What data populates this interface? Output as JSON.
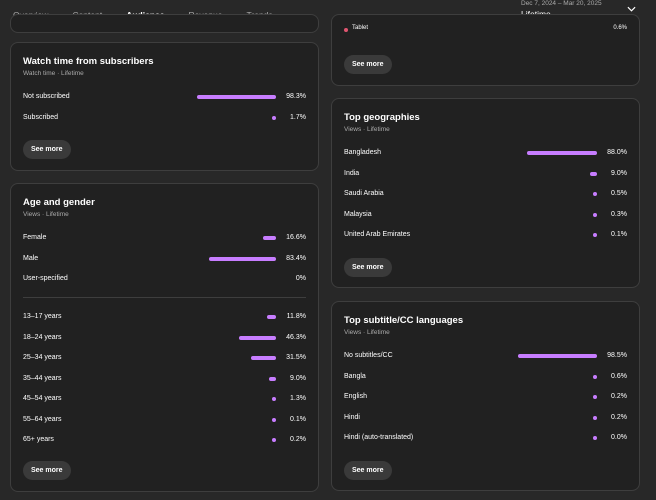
{
  "tabs": [
    "Overview",
    "Content",
    "Audience",
    "Revenue",
    "Trends"
  ],
  "active_tab": "Audience",
  "date_range": {
    "range": "Dec 7, 2024 – Mar 20, 2025",
    "period": "Lifetime"
  },
  "accent_color": "#c77dff",
  "top_partial_card": {
    "label": "Tablet",
    "value": "0.6%",
    "see_more": "See more"
  },
  "watch_time": {
    "title": "Watch time from subscribers",
    "subtitle": "Watch time · Lifetime",
    "rows": [
      {
        "label": "Not subscribed",
        "value": "98.3%",
        "pct": 98.3
      },
      {
        "label": "Subscribed",
        "value": "1.7%",
        "pct": 1.7
      }
    ],
    "see_more": "See more"
  },
  "age_gender": {
    "title": "Age and gender",
    "subtitle": "Views · Lifetime",
    "gender": [
      {
        "label": "Female",
        "value": "16.6%",
        "pct": 16.6
      },
      {
        "label": "Male",
        "value": "83.4%",
        "pct": 83.4
      },
      {
        "label": "User-specified",
        "value": "0%",
        "pct": 0
      }
    ],
    "ages": [
      {
        "label": "13–17 years",
        "value": "11.8%",
        "pct": 11.8
      },
      {
        "label": "18–24 years",
        "value": "46.3%",
        "pct": 46.3
      },
      {
        "label": "25–34 years",
        "value": "31.5%",
        "pct": 31.5
      },
      {
        "label": "35–44 years",
        "value": "9.0%",
        "pct": 9.0
      },
      {
        "label": "45–54 years",
        "value": "1.3%",
        "pct": 1.3
      },
      {
        "label": "55–64 years",
        "value": "0.1%",
        "pct": 0.1
      },
      {
        "label": "65+ years",
        "value": "0.2%",
        "pct": 0.2
      }
    ],
    "see_more": "See more"
  },
  "geographies": {
    "title": "Top geographies",
    "subtitle": "Views · Lifetime",
    "rows": [
      {
        "label": "Bangladesh",
        "value": "88.0%",
        "pct": 88.0
      },
      {
        "label": "India",
        "value": "9.0%",
        "pct": 9.0
      },
      {
        "label": "Saudi Arabia",
        "value": "0.5%",
        "pct": 0.5
      },
      {
        "label": "Malaysia",
        "value": "0.3%",
        "pct": 0.3
      },
      {
        "label": "United Arab Emirates",
        "value": "0.1%",
        "pct": 0.1
      }
    ],
    "see_more": "See more"
  },
  "subtitles": {
    "title": "Top subtitle/CC languages",
    "subtitle": "Views · Lifetime",
    "rows": [
      {
        "label": "No subtitles/CC",
        "value": "98.5%",
        "pct": 98.5
      },
      {
        "label": "Bangla",
        "value": "0.6%",
        "pct": 0.6
      },
      {
        "label": "English",
        "value": "0.2%",
        "pct": 0.2
      },
      {
        "label": "Hindi",
        "value": "0.2%",
        "pct": 0.2
      },
      {
        "label": "Hindi (auto-translated)",
        "value": "0.0%",
        "pct": 0.0
      }
    ],
    "see_more": "See more"
  }
}
